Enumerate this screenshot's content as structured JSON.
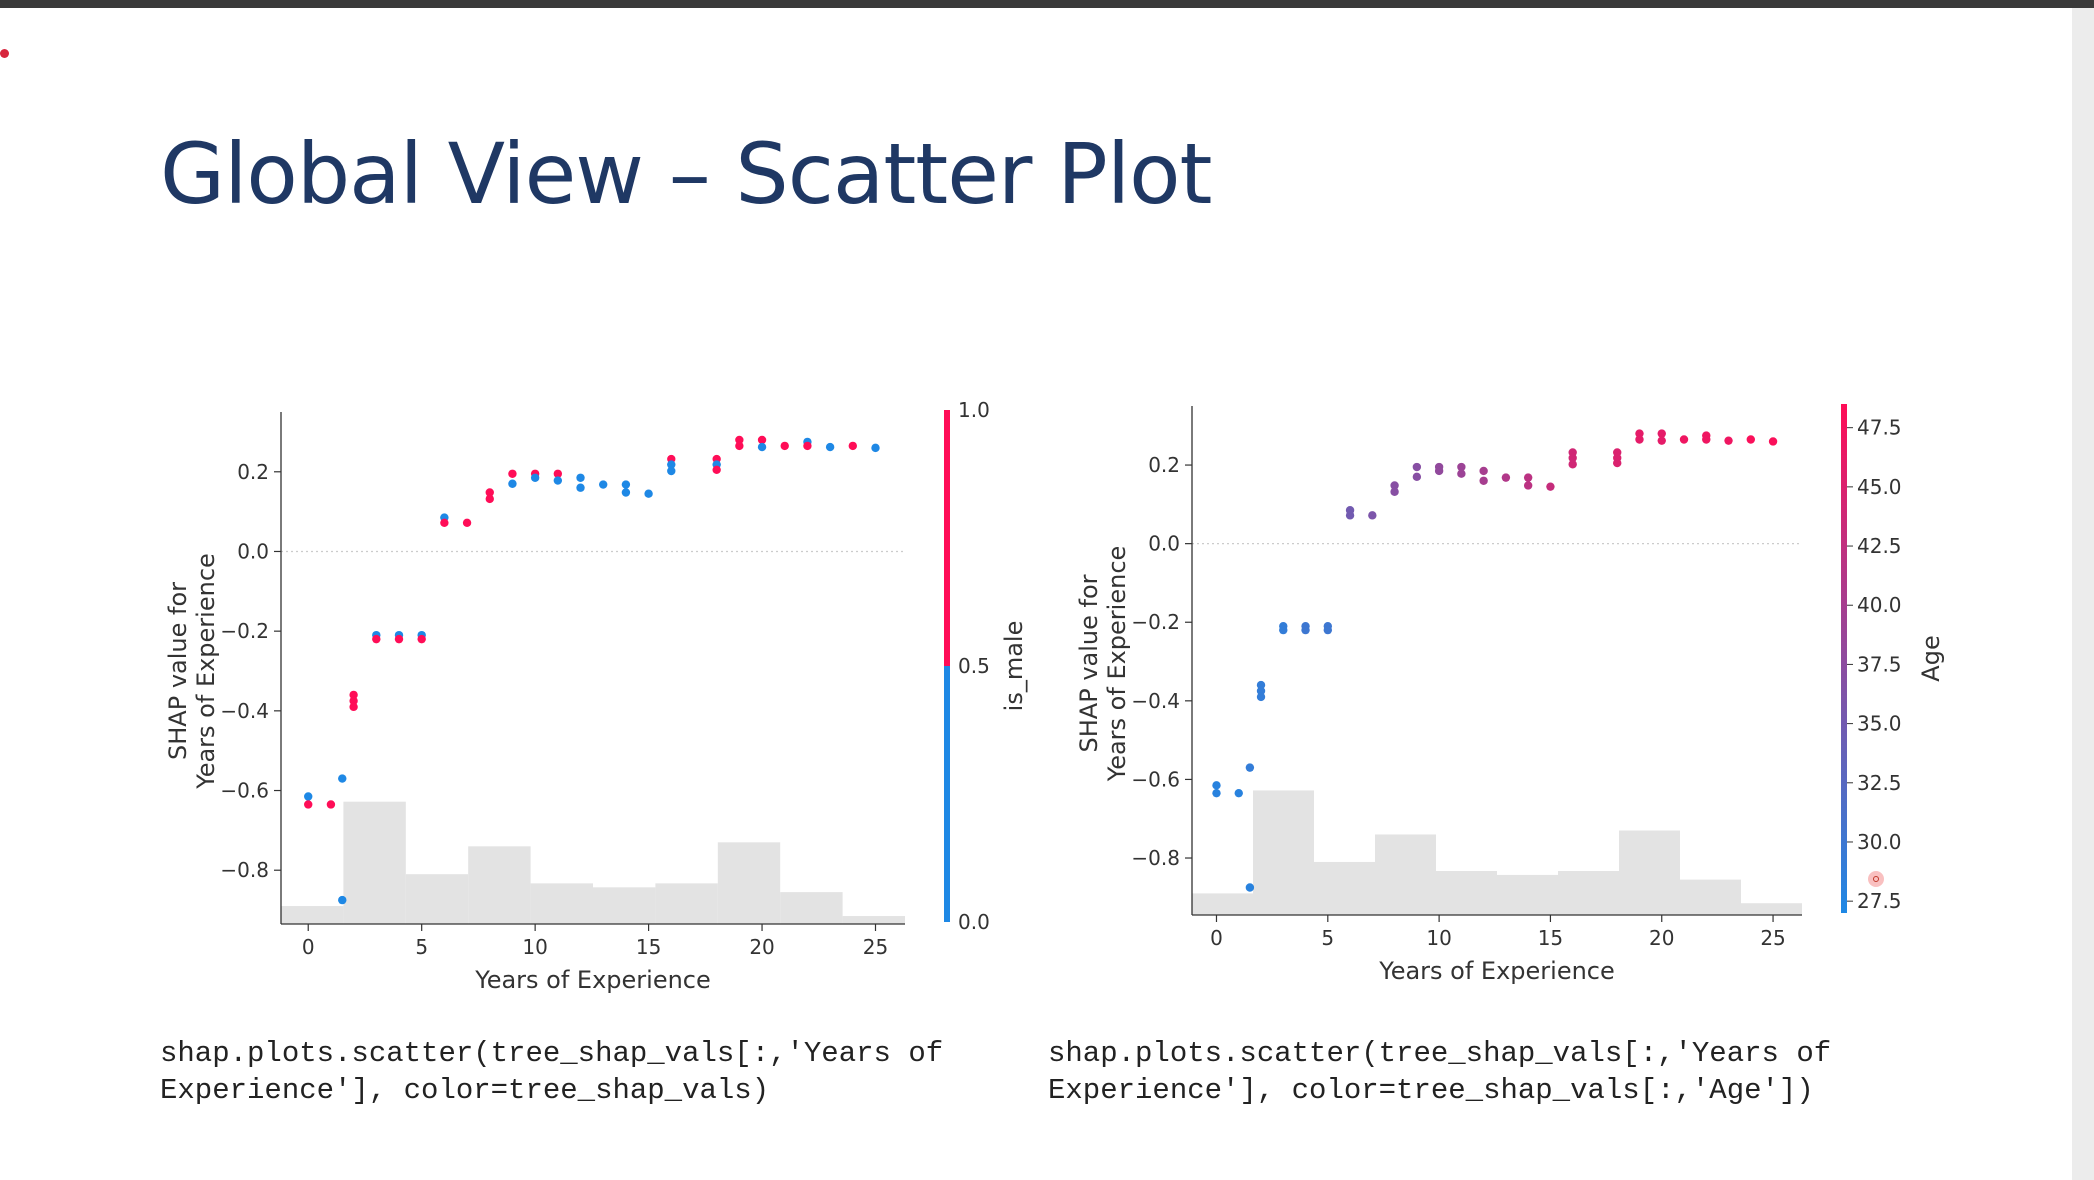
{
  "slide": {
    "title": "Global View – Scatter Plot",
    "captions": [
      "shap.plots.scatter(tree_shap_vals[:,'Years of\nExperience'], color=tree_shap_vals)",
      "shap.plots.scatter(tree_shap_vals[:,'Years of\nExperience'], color=tree_shap_vals[:,'Age'])"
    ]
  },
  "colors": {
    "title": "#1f3864",
    "low": "#1e88e5",
    "high": "#ff0d57",
    "histogram": "#e3e3e3",
    "zero_line": "#cccccc"
  },
  "chart_data": [
    {
      "type": "scatter",
      "title": "",
      "xlabel": "Years of Experience",
      "ylabel": "SHAP value for\nYears of Experience",
      "xlim": [
        -1.2,
        26.3
      ],
      "ylim": [
        -0.935,
        0.335
      ],
      "xticks": [
        0,
        5,
        10,
        15,
        20,
        25
      ],
      "yticks": [
        0.2,
        0.0,
        -0.2,
        -0.4,
        -0.6,
        -0.8
      ],
      "grid": false,
      "colorbar": {
        "label": "is_male",
        "range": [
          0.0,
          1.0
        ],
        "ticks": [
          "1.0",
          "0.5",
          "0.0"
        ],
        "style": "binary"
      },
      "points": [
        {
          "x": 0,
          "y": -0.615,
          "c": 0
        },
        {
          "x": 0,
          "y": -0.635,
          "c": 1
        },
        {
          "x": 1,
          "y": -0.635,
          "c": 1
        },
        {
          "x": 1.5,
          "y": -0.57,
          "c": 0
        },
        {
          "x": 1.5,
          "y": -0.875,
          "c": 0
        },
        {
          "x": 2,
          "y": -0.36,
          "c": 1
        },
        {
          "x": 2,
          "y": -0.375,
          "c": 1
        },
        {
          "x": 2,
          "y": -0.39,
          "c": 1
        },
        {
          "x": 3,
          "y": -0.21,
          "c": 0
        },
        {
          "x": 3,
          "y": -0.22,
          "c": 1
        },
        {
          "x": 4,
          "y": -0.21,
          "c": 0
        },
        {
          "x": 4,
          "y": -0.22,
          "c": 1
        },
        {
          "x": 5,
          "y": -0.21,
          "c": 0
        },
        {
          "x": 5,
          "y": -0.22,
          "c": 1
        },
        {
          "x": 6,
          "y": 0.085,
          "c": 0
        },
        {
          "x": 6,
          "y": 0.072,
          "c": 1
        },
        {
          "x": 7,
          "y": 0.072,
          "c": 1
        },
        {
          "x": 8,
          "y": 0.148,
          "c": 1
        },
        {
          "x": 8,
          "y": 0.132,
          "c": 1
        },
        {
          "x": 9,
          "y": 0.195,
          "c": 1
        },
        {
          "x": 9,
          "y": 0.17,
          "c": 0
        },
        {
          "x": 10,
          "y": 0.195,
          "c": 1
        },
        {
          "x": 10,
          "y": 0.185,
          "c": 0
        },
        {
          "x": 11,
          "y": 0.195,
          "c": 1
        },
        {
          "x": 11,
          "y": 0.178,
          "c": 0
        },
        {
          "x": 12,
          "y": 0.185,
          "c": 0
        },
        {
          "x": 12,
          "y": 0.16,
          "c": 0
        },
        {
          "x": 13,
          "y": 0.168,
          "c": 0
        },
        {
          "x": 14,
          "y": 0.168,
          "c": 0
        },
        {
          "x": 14,
          "y": 0.148,
          "c": 0
        },
        {
          "x": 15,
          "y": 0.145,
          "c": 0
        },
        {
          "x": 16,
          "y": 0.232,
          "c": 1
        },
        {
          "x": 16,
          "y": 0.218,
          "c": 0
        },
        {
          "x": 16,
          "y": 0.202,
          "c": 0
        },
        {
          "x": 18,
          "y": 0.232,
          "c": 1
        },
        {
          "x": 18,
          "y": 0.218,
          "c": 0
        },
        {
          "x": 18,
          "y": 0.205,
          "c": 1
        },
        {
          "x": 19,
          "y": 0.28,
          "c": 1
        },
        {
          "x": 19,
          "y": 0.265,
          "c": 1
        },
        {
          "x": 20,
          "y": 0.28,
          "c": 1
        },
        {
          "x": 20,
          "y": 0.262,
          "c": 0
        },
        {
          "x": 21,
          "y": 0.265,
          "c": 1
        },
        {
          "x": 22,
          "y": 0.275,
          "c": 0
        },
        {
          "x": 22,
          "y": 0.265,
          "c": 1
        },
        {
          "x": 23,
          "y": 0.262,
          "c": 0
        },
        {
          "x": 24,
          "y": 0.265,
          "c": 1
        },
        {
          "x": 25,
          "y": 0.26,
          "c": 0
        }
      ],
      "histogram": {
        "edges": [
          -1.2,
          1.55,
          4.3,
          7.05,
          9.8,
          12.55,
          15.3,
          18.05,
          20.8,
          23.55,
          26.3
        ],
        "tops": [
          -0.89,
          -0.628,
          -0.81,
          -0.74,
          -0.833,
          -0.843,
          -0.833,
          -0.73,
          -0.855,
          -0.915
        ]
      }
    },
    {
      "type": "scatter",
      "title": "",
      "xlabel": "Years of Experience",
      "ylabel": "SHAP value for\nYears of Experience",
      "xlim": [
        -1.1,
        26.3
      ],
      "ylim": [
        -0.945,
        0.335
      ],
      "xticks": [
        0,
        5,
        10,
        15,
        20,
        25
      ],
      "yticks": [
        0.2,
        0.0,
        -0.2,
        -0.4,
        -0.6,
        -0.8
      ],
      "grid": false,
      "colorbar": {
        "label": "Age",
        "range": [
          27.0,
          48.5
        ],
        "ticks": [
          "47.5",
          "45.0",
          "42.5",
          "40.0",
          "37.5",
          "35.0",
          "32.5",
          "30.0",
          "27.5"
        ],
        "style": "gradient"
      },
      "points": [
        {
          "x": 0,
          "y": -0.615,
          "c": 28
        },
        {
          "x": 0,
          "y": -0.635,
          "c": 28
        },
        {
          "x": 1,
          "y": -0.635,
          "c": 28
        },
        {
          "x": 1.5,
          "y": -0.57,
          "c": 29
        },
        {
          "x": 1.5,
          "y": -0.875,
          "c": 28
        },
        {
          "x": 2,
          "y": -0.36,
          "c": 29
        },
        {
          "x": 2,
          "y": -0.375,
          "c": 29
        },
        {
          "x": 2,
          "y": -0.39,
          "c": 29
        },
        {
          "x": 3,
          "y": -0.21,
          "c": 29
        },
        {
          "x": 3,
          "y": -0.22,
          "c": 29
        },
        {
          "x": 4,
          "y": -0.21,
          "c": 30
        },
        {
          "x": 4,
          "y": -0.22,
          "c": 30
        },
        {
          "x": 5,
          "y": -0.21,
          "c": 30
        },
        {
          "x": 5,
          "y": -0.22,
          "c": 30
        },
        {
          "x": 6,
          "y": 0.085,
          "c": 35
        },
        {
          "x": 6,
          "y": 0.072,
          "c": 35
        },
        {
          "x": 7,
          "y": 0.072,
          "c": 36
        },
        {
          "x": 8,
          "y": 0.148,
          "c": 37
        },
        {
          "x": 8,
          "y": 0.132,
          "c": 37
        },
        {
          "x": 9,
          "y": 0.195,
          "c": 37
        },
        {
          "x": 9,
          "y": 0.17,
          "c": 37
        },
        {
          "x": 10,
          "y": 0.195,
          "c": 38
        },
        {
          "x": 10,
          "y": 0.185,
          "c": 38
        },
        {
          "x": 11,
          "y": 0.195,
          "c": 39
        },
        {
          "x": 11,
          "y": 0.178,
          "c": 39
        },
        {
          "x": 12,
          "y": 0.185,
          "c": 40
        },
        {
          "x": 12,
          "y": 0.16,
          "c": 40
        },
        {
          "x": 13,
          "y": 0.168,
          "c": 41
        },
        {
          "x": 14,
          "y": 0.168,
          "c": 42
        },
        {
          "x": 14,
          "y": 0.148,
          "c": 42
        },
        {
          "x": 15,
          "y": 0.145,
          "c": 43
        },
        {
          "x": 16,
          "y": 0.232,
          "c": 44
        },
        {
          "x": 16,
          "y": 0.218,
          "c": 44
        },
        {
          "x": 16,
          "y": 0.202,
          "c": 44
        },
        {
          "x": 18,
          "y": 0.232,
          "c": 45
        },
        {
          "x": 18,
          "y": 0.218,
          "c": 45
        },
        {
          "x": 18,
          "y": 0.205,
          "c": 45
        },
        {
          "x": 19,
          "y": 0.28,
          "c": 46
        },
        {
          "x": 19,
          "y": 0.265,
          "c": 46
        },
        {
          "x": 20,
          "y": 0.28,
          "c": 46
        },
        {
          "x": 20,
          "y": 0.262,
          "c": 46
        },
        {
          "x": 21,
          "y": 0.265,
          "c": 47
        },
        {
          "x": 22,
          "y": 0.275,
          "c": 47
        },
        {
          "x": 22,
          "y": 0.265,
          "c": 47
        },
        {
          "x": 23,
          "y": 0.262,
          "c": 47
        },
        {
          "x": 24,
          "y": 0.265,
          "c": 48
        },
        {
          "x": 25,
          "y": 0.26,
          "c": 48
        }
      ],
      "histogram": {
        "edges": [
          -1.1,
          1.64,
          4.38,
          7.12,
          9.86,
          12.6,
          15.34,
          18.08,
          20.82,
          23.56,
          26.3
        ],
        "tops": [
          -0.89,
          -0.628,
          -0.81,
          -0.74,
          -0.833,
          -0.843,
          -0.833,
          -0.73,
          -0.855,
          -0.915
        ]
      }
    }
  ]
}
